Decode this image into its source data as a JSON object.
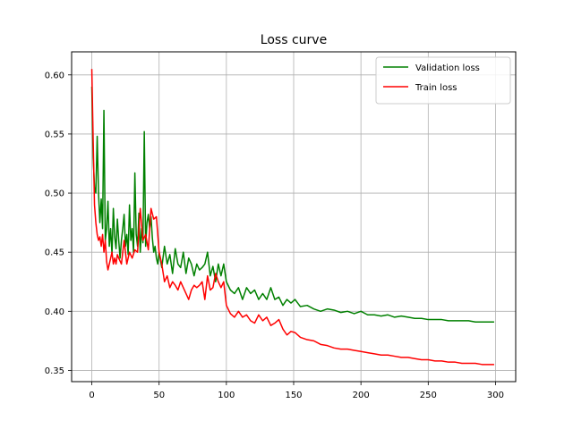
{
  "chart_data": {
    "type": "line",
    "title": "Loss curve",
    "xlabel": "",
    "ylabel": "",
    "xlim": [
      -15,
      315
    ],
    "ylim": [
      0.3405,
      0.6195
    ],
    "xticks": [
      0,
      50,
      100,
      150,
      200,
      250,
      300
    ],
    "yticks": [
      0.35,
      0.4,
      0.45,
      0.5,
      0.55,
      0.6
    ],
    "grid": true,
    "legend_position": "top-right",
    "series": [
      {
        "name": "Validation loss",
        "color": "#008000",
        "x": [
          0,
          1,
          2,
          3,
          4,
          5,
          6,
          7,
          8,
          9,
          10,
          11,
          12,
          13,
          14,
          15,
          16,
          17,
          18,
          19,
          20,
          21,
          22,
          23,
          24,
          25,
          26,
          27,
          28,
          29,
          30,
          31,
          32,
          33,
          34,
          35,
          36,
          37,
          38,
          39,
          40,
          41,
          42,
          43,
          44,
          45,
          46,
          47,
          48,
          49,
          50,
          52,
          54,
          56,
          58,
          60,
          62,
          64,
          66,
          68,
          70,
          72,
          74,
          76,
          78,
          80,
          82,
          84,
          86,
          88,
          90,
          92,
          94,
          96,
          98,
          100,
          103,
          106,
          109,
          112,
          115,
          118,
          121,
          124,
          127,
          130,
          133,
          136,
          139,
          142,
          145,
          148,
          151,
          155,
          160,
          165,
          170,
          175,
          180,
          185,
          190,
          195,
          200,
          205,
          210,
          215,
          220,
          225,
          230,
          235,
          240,
          245,
          250,
          255,
          260,
          265,
          270,
          275,
          280,
          285,
          290,
          295,
          299
        ],
        "y": [
          0.59,
          0.53,
          0.505,
          0.5,
          0.548,
          0.5,
          0.475,
          0.495,
          0.47,
          0.57,
          0.46,
          0.47,
          0.493,
          0.455,
          0.47,
          0.448,
          0.487,
          0.463,
          0.453,
          0.478,
          0.46,
          0.445,
          0.46,
          0.47,
          0.482,
          0.455,
          0.465,
          0.448,
          0.49,
          0.46,
          0.47,
          0.45,
          0.517,
          0.465,
          0.455,
          0.483,
          0.45,
          0.47,
          0.458,
          0.552,
          0.455,
          0.475,
          0.482,
          0.47,
          0.48,
          0.462,
          0.45,
          0.455,
          0.445,
          0.44,
          0.45,
          0.437,
          0.455,
          0.44,
          0.448,
          0.432,
          0.453,
          0.44,
          0.437,
          0.45,
          0.432,
          0.445,
          0.44,
          0.43,
          0.44,
          0.435,
          0.437,
          0.44,
          0.45,
          0.43,
          0.438,
          0.425,
          0.44,
          0.43,
          0.44,
          0.425,
          0.418,
          0.415,
          0.42,
          0.41,
          0.42,
          0.415,
          0.418,
          0.41,
          0.415,
          0.41,
          0.42,
          0.41,
          0.412,
          0.405,
          0.41,
          0.407,
          0.41,
          0.404,
          0.405,
          0.402,
          0.4,
          0.402,
          0.401,
          0.399,
          0.4,
          0.398,
          0.4,
          0.397,
          0.397,
          0.396,
          0.397,
          0.395,
          0.396,
          0.395,
          0.394,
          0.394,
          0.393,
          0.393,
          0.393,
          0.392,
          0.392,
          0.392,
          0.392,
          0.391,
          0.391,
          0.391,
          0.391
        ]
      },
      {
        "name": "Train loss",
        "color": "#ff0000",
        "x": [
          0,
          1,
          2,
          3,
          4,
          5,
          6,
          7,
          8,
          9,
          10,
          11,
          12,
          13,
          14,
          15,
          16,
          17,
          18,
          19,
          20,
          22,
          24,
          26,
          28,
          30,
          32,
          34,
          36,
          38,
          40,
          42,
          44,
          46,
          48,
          50,
          52,
          54,
          56,
          58,
          60,
          62,
          64,
          66,
          68,
          70,
          72,
          74,
          76,
          78,
          80,
          82,
          84,
          86,
          88,
          90,
          92,
          94,
          96,
          98,
          100,
          103,
          106,
          109,
          112,
          115,
          118,
          121,
          124,
          127,
          130,
          133,
          136,
          139,
          142,
          145,
          148,
          151,
          155,
          160,
          165,
          170,
          175,
          180,
          185,
          190,
          195,
          200,
          205,
          210,
          215,
          220,
          225,
          230,
          235,
          240,
          245,
          250,
          255,
          260,
          265,
          270,
          275,
          280,
          285,
          290,
          295,
          299
        ],
        "y": [
          0.605,
          0.545,
          0.49,
          0.475,
          0.465,
          0.46,
          0.463,
          0.455,
          0.465,
          0.45,
          0.46,
          0.442,
          0.435,
          0.44,
          0.445,
          0.45,
          0.44,
          0.445,
          0.44,
          0.448,
          0.445,
          0.44,
          0.46,
          0.44,
          0.45,
          0.445,
          0.452,
          0.45,
          0.487,
          0.46,
          0.465,
          0.452,
          0.487,
          0.478,
          0.48,
          0.45,
          0.44,
          0.425,
          0.43,
          0.42,
          0.425,
          0.422,
          0.418,
          0.425,
          0.42,
          0.415,
          0.41,
          0.418,
          0.422,
          0.42,
          0.422,
          0.425,
          0.41,
          0.43,
          0.418,
          0.42,
          0.432,
          0.425,
          0.42,
          0.425,
          0.405,
          0.398,
          0.395,
          0.4,
          0.395,
          0.397,
          0.392,
          0.39,
          0.397,
          0.392,
          0.395,
          0.388,
          0.39,
          0.393,
          0.385,
          0.38,
          0.383,
          0.382,
          0.378,
          0.376,
          0.375,
          0.372,
          0.371,
          0.369,
          0.368,
          0.368,
          0.367,
          0.366,
          0.365,
          0.364,
          0.363,
          0.363,
          0.362,
          0.361,
          0.361,
          0.36,
          0.359,
          0.359,
          0.358,
          0.358,
          0.357,
          0.357,
          0.356,
          0.356,
          0.356,
          0.355,
          0.355,
          0.355
        ]
      }
    ]
  }
}
